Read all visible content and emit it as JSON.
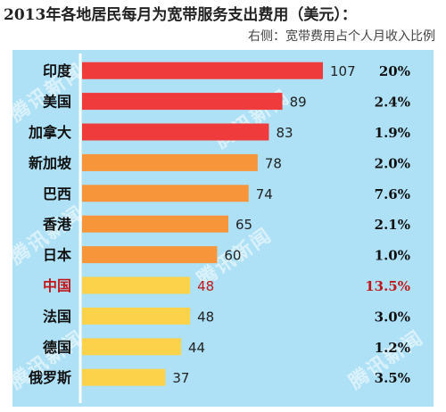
{
  "chart_data": {
    "type": "bar",
    "orientation": "horizontal",
    "title": "2013年各地居民每月为宽带服务支出费用（美元）：",
    "subtitle": "右侧：宽带费用占个人月收入比例",
    "categories": [
      "印度",
      "美国",
      "加拿大",
      "新加坡",
      "巴西",
      "香港",
      "日本",
      "中国",
      "法国",
      "德国",
      "俄罗斯"
    ],
    "values": [
      107,
      89,
      83,
      78,
      74,
      65,
      60,
      48,
      48,
      44,
      37
    ],
    "value_labels": [
      "107",
      "89",
      "83",
      "78",
      "74",
      "65",
      "60",
      "48",
      "48",
      "44",
      "37"
    ],
    "percent_labels": [
      "20%",
      "2.4%",
      "1.9%",
      "2.0%",
      "7.6%",
      "2.1%",
      "1.0%",
      "13.5%",
      "3.0%",
      "1.2%",
      "3.5%"
    ],
    "bar_colors": [
      "#ef3b3b",
      "#ef3b3b",
      "#ef3b3b",
      "#f7953a",
      "#f7953a",
      "#f7953a",
      "#f7953a",
      "#fcd24b",
      "#fcd24b",
      "#fcd24b",
      "#fcd24b"
    ],
    "highlight_category": "中国",
    "highlight_color": "#c0171c",
    "xlim": [
      0,
      107
    ],
    "grid": false,
    "legend": "none",
    "background_color": "#aee1f6"
  },
  "watermark_text": "腾讯新闻"
}
